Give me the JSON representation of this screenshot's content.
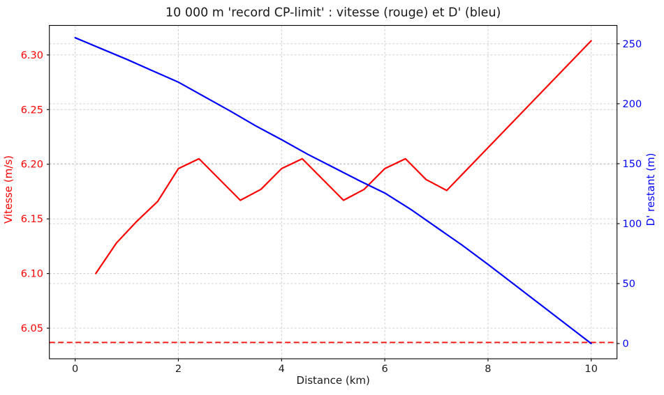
{
  "chart_data": {
    "type": "line",
    "title": "10 000 m 'record CP-limit' : vitesse (rouge) et D' (bleu)",
    "xlabel": "Distance (km)",
    "ylabel_left": "Vitesse (m/s)",
    "ylabel_right": "D' restant (m)",
    "legend": "none",
    "grid": true,
    "xlim": [
      -0.5,
      10.5
    ],
    "ylim_left": [
      6.022,
      6.327
    ],
    "ylim_right": [
      -12.7,
      265.3
    ],
    "xticks": [
      0,
      2,
      4,
      6,
      8,
      10
    ],
    "xtick_labels": [
      "0",
      "2",
      "4",
      "6",
      "8",
      "10"
    ],
    "yticks_left": [
      6.05,
      6.1,
      6.15,
      6.2,
      6.25,
      6.3
    ],
    "ytick_left_labels": [
      "6.05",
      "6.10",
      "6.15",
      "6.20",
      "6.25",
      "6.30"
    ],
    "yticks_right": [
      0,
      50,
      100,
      150,
      200,
      250
    ],
    "ytick_right_labels": [
      "0",
      "50",
      "100",
      "150",
      "200",
      "250"
    ],
    "colors": {
      "vitesse": "#ff0000",
      "d_restant": "#0000ff",
      "cp": "#ff0000",
      "grid": "#cccccc",
      "text": "#1a1a1a",
      "spine": "#000000",
      "background": "#ffffff"
    },
    "cp_line": {
      "axis": "left",
      "value": 6.037,
      "style": "dashed",
      "color": "#ff0000"
    },
    "series": [
      {
        "name": "vitesse",
        "label": "vitesse (rouge)",
        "axis": "left",
        "color": "#ff0000",
        "style": "solid",
        "points": [
          [
            0.4,
            6.1
          ],
          [
            0.8,
            6.128
          ],
          [
            1.2,
            6.148
          ],
          [
            1.6,
            6.166
          ],
          [
            2.0,
            6.196
          ],
          [
            2.4,
            6.205
          ],
          [
            3.2,
            6.167
          ],
          [
            3.6,
            6.177
          ],
          [
            4.0,
            6.196
          ],
          [
            4.4,
            6.205
          ],
          [
            5.2,
            6.167
          ],
          [
            5.6,
            6.177
          ],
          [
            6.0,
            6.196
          ],
          [
            6.4,
            6.205
          ],
          [
            6.8,
            6.186
          ],
          [
            7.2,
            6.176
          ],
          [
            10.0,
            6.313
          ]
        ]
      },
      {
        "name": "d-restant",
        "label": "D' (bleu)",
        "axis": "right",
        "color": "#0000ff",
        "style": "solid",
        "points": [
          [
            0.0,
            255
          ],
          [
            0.5,
            246
          ],
          [
            1.0,
            237
          ],
          [
            1.5,
            227.5
          ],
          [
            2.0,
            218
          ],
          [
            2.5,
            206
          ],
          [
            3.0,
            194
          ],
          [
            3.5,
            181.5
          ],
          [
            4.0,
            170
          ],
          [
            4.5,
            158
          ],
          [
            5.0,
            147
          ],
          [
            5.5,
            136
          ],
          [
            6.0,
            125.5
          ],
          [
            6.5,
            112
          ],
          [
            7.0,
            97
          ],
          [
            7.5,
            82
          ],
          [
            8.0,
            66
          ],
          [
            8.5,
            49.5
          ],
          [
            9.0,
            33
          ],
          [
            9.5,
            16.5
          ],
          [
            10.0,
            0
          ]
        ]
      }
    ]
  }
}
